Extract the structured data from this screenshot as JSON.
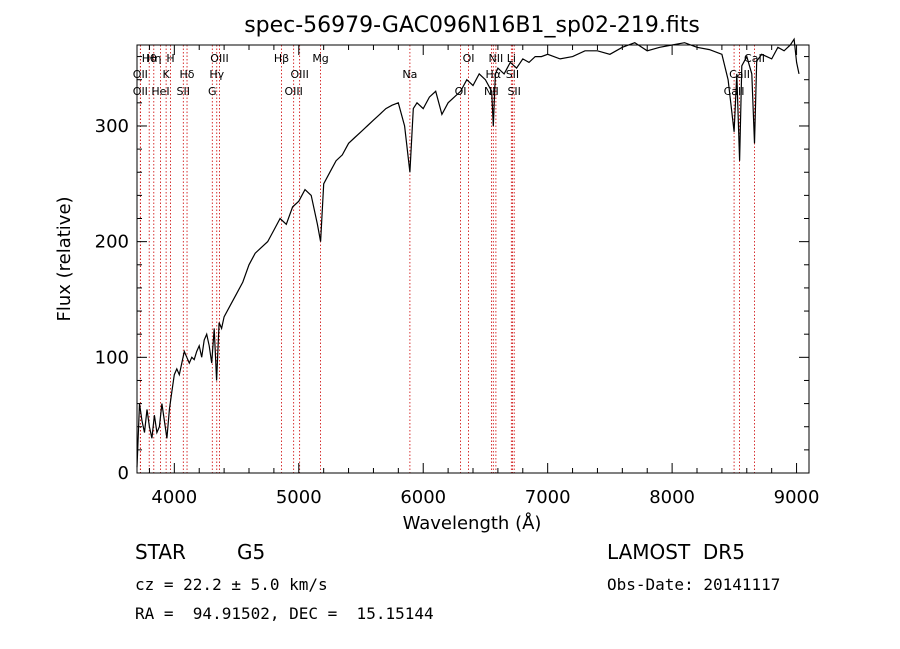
{
  "chart_data": {
    "type": "line",
    "title": "spec-56979-GAC096N16B1_sp02-219.fits",
    "xlabel": "Wavelength (Å)",
    "ylabel": "Flux (relative)",
    "xlim": [
      3700,
      9100
    ],
    "ylim": [
      0,
      370
    ],
    "xticks": [
      4000,
      5000,
      6000,
      7000,
      8000,
      9000
    ],
    "yticks": [
      0,
      100,
      200,
      300
    ],
    "grid": false,
    "line_color": "#000000",
    "marker_color": "#cc0000",
    "line_markers": [
      {
        "label": "Hθ",
        "x": 3798
      },
      {
        "label": "OII",
        "x": 3727
      },
      {
        "label": "OII",
        "x": 3727
      },
      {
        "label": "Hη",
        "x": 3835
      },
      {
        "label": "K",
        "x": 3934
      },
      {
        "label": "HeI",
        "x": 3889
      },
      {
        "label": "H",
        "x": 3969
      },
      {
        "label": "Hδ",
        "x": 4102
      },
      {
        "label": "SII",
        "x": 4072
      },
      {
        "label": "OIII",
        "x": 4363
      },
      {
        "label": "Hγ",
        "x": 4341
      },
      {
        "label": "G",
        "x": 4305
      },
      {
        "label": "Hβ",
        "x": 4861
      },
      {
        "label": "OIII",
        "x": 5007
      },
      {
        "label": "OIII",
        "x": 4959
      },
      {
        "label": "Mg",
        "x": 5175
      },
      {
        "label": "Na",
        "x": 5893
      },
      {
        "label": "OI",
        "x": 6300
      },
      {
        "label": "OI",
        "x": 6364
      },
      {
        "label": "Hα",
        "x": 6563
      },
      {
        "label": "NII",
        "x": 6548
      },
      {
        "label": "NII",
        "x": 6584
      },
      {
        "label": "SII",
        "x": 6717
      },
      {
        "label": "SII",
        "x": 6731
      },
      {
        "label": "Li",
        "x": 6708
      },
      {
        "label": "CaII",
        "x": 8542
      },
      {
        "label": "CaII",
        "x": 8498
      },
      {
        "label": "CaII",
        "x": 8662
      }
    ],
    "series": [
      {
        "x": [
          3700,
          3720,
          3740,
          3760,
          3780,
          3800,
          3820,
          3840,
          3860,
          3880,
          3900,
          3920,
          3940,
          3960,
          3980,
          4000,
          4020,
          4040,
          4060,
          4080,
          4100,
          4120,
          4140,
          4160,
          4180,
          4200,
          4220,
          4240,
          4260,
          4280,
          4300,
          4320,
          4340,
          4360,
          4380,
          4400,
          4450,
          4500,
          4550,
          4600,
          4650,
          4700,
          4750,
          4800,
          4850,
          4900,
          4950,
          5000,
          5050,
          5100,
          5150,
          5175,
          5200,
          5250,
          5300,
          5350,
          5400,
          5450,
          5500,
          5550,
          5600,
          5650,
          5700,
          5750,
          5800,
          5850,
          5893,
          5920,
          5950,
          6000,
          6050,
          6100,
          6150,
          6200,
          6250,
          6300,
          6350,
          6400,
          6450,
          6500,
          6550,
          6563,
          6580,
          6600,
          6650,
          6700,
          6750,
          6800,
          6850,
          6900,
          6950,
          7000,
          7100,
          7200,
          7300,
          7400,
          7500,
          7600,
          7700,
          7800,
          7900,
          8000,
          8100,
          8200,
          8300,
          8400,
          8450,
          8498,
          8520,
          8542,
          8560,
          8600,
          8640,
          8662,
          8680,
          8720,
          8760,
          8800,
          8850,
          8900,
          8950,
          8980,
          9000,
          9020
        ],
        "y": [
          5,
          60,
          45,
          35,
          55,
          40,
          30,
          50,
          35,
          40,
          60,
          45,
          30,
          55,
          70,
          85,
          90,
          85,
          95,
          105,
          100,
          95,
          100,
          98,
          105,
          110,
          100,
          115,
          120,
          110,
          95,
          125,
          80,
          130,
          125,
          135,
          145,
          155,
          165,
          180,
          190,
          195,
          200,
          210,
          220,
          215,
          230,
          235,
          245,
          240,
          215,
          200,
          250,
          260,
          270,
          275,
          285,
          290,
          295,
          300,
          305,
          310,
          315,
          318,
          320,
          300,
          260,
          315,
          320,
          315,
          325,
          330,
          310,
          320,
          325,
          330,
          340,
          335,
          345,
          340,
          330,
          300,
          345,
          350,
          345,
          355,
          350,
          358,
          355,
          360,
          360,
          362,
          358,
          360,
          365,
          365,
          362,
          368,
          372,
          365,
          368,
          370,
          372,
          368,
          366,
          362,
          340,
          295,
          345,
          270,
          352,
          360,
          345,
          285,
          356,
          362,
          360,
          358,
          368,
          365,
          370,
          375,
          355,
          345
        ]
      }
    ]
  },
  "info": {
    "class": "STAR",
    "subclass": "G5",
    "survey": "LAMOST  DR5",
    "cz": "cz = 22.2 ± 5.0 km/s",
    "obs_date": "Obs-Date: 20141117",
    "coords": "RA =  94.91502, DEC =  15.15144"
  }
}
